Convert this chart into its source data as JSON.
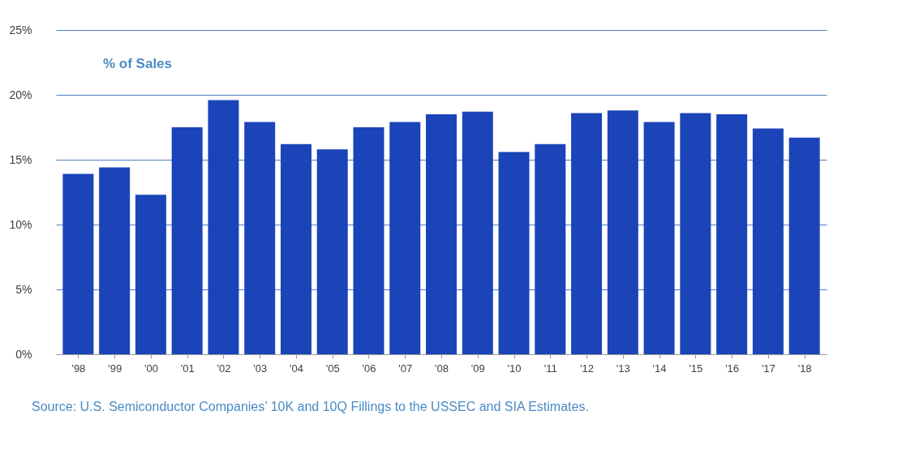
{
  "chart_data": {
    "type": "bar",
    "categories": [
      "'98",
      "'99",
      "'00",
      "'01",
      "'02",
      "'03",
      "'04",
      "'05",
      "'06",
      "'07",
      "'08",
      "'09",
      "'10",
      "'11",
      "'12",
      "'13",
      "'14",
      "'15",
      "'16",
      "'17",
      "'18"
    ],
    "values": [
      13.9,
      14.4,
      12.3,
      17.5,
      19.6,
      17.9,
      16.2,
      15.8,
      17.5,
      17.9,
      18.5,
      18.7,
      15.6,
      16.2,
      18.6,
      18.8,
      17.9,
      18.6,
      18.5,
      17.4,
      16.7
    ],
    "color": "#1b44b9",
    "ylim": [
      0,
      25
    ],
    "yticks": [
      {
        "value": 0,
        "label": "0%"
      },
      {
        "value": 5,
        "label": "5%"
      },
      {
        "value": 10,
        "label": "10%"
      },
      {
        "value": 15,
        "label": "15%"
      },
      {
        "value": 20,
        "label": "20%"
      },
      {
        "value": 25,
        "label": "25%"
      }
    ],
    "grid": "y",
    "annotations": [
      "% of Sales",
      "Source: U.S. Semiconductor Companies’ 10K and 10Q Fillings to the USSEC and SIA Estimates."
    ]
  }
}
